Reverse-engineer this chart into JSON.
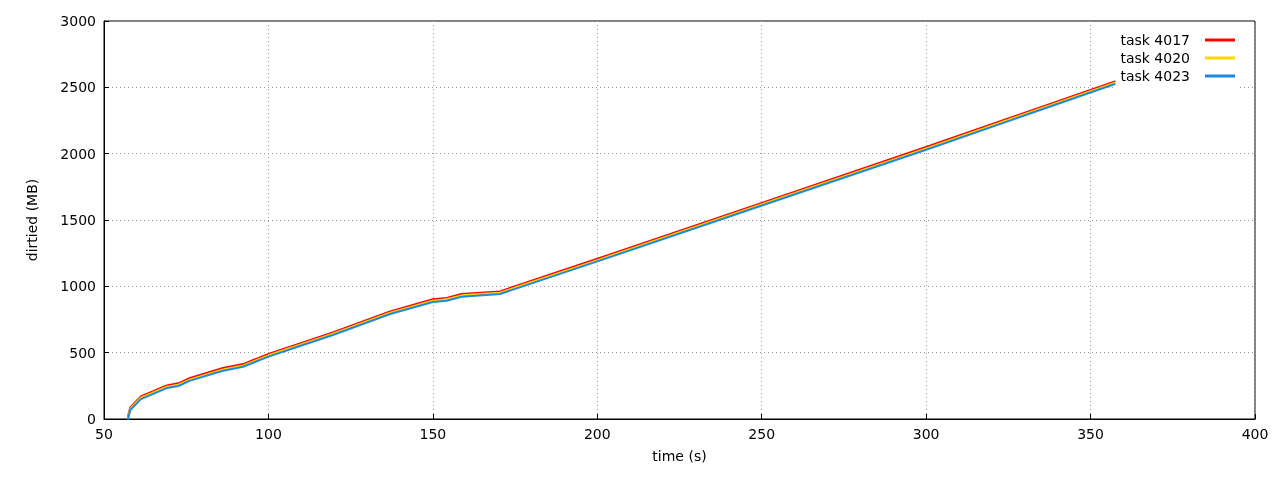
{
  "chart_data": {
    "type": "line",
    "xlabel": "time (s)",
    "ylabel": "dirtied (MB)",
    "xlim": [
      50,
      400
    ],
    "xticks": [
      50,
      100,
      150,
      200,
      250,
      300,
      350,
      400
    ],
    "ylim": [
      0,
      3000
    ],
    "yticks": [
      0,
      500,
      1000,
      1500,
      2000,
      2500,
      3000
    ],
    "grid": true,
    "legend": "top right",
    "marker": "none",
    "line_style": "solid",
    "x": [
      57.3,
      58,
      61.2,
      69.1,
      72.6,
      76.2,
      86.2,
      92.3,
      100,
      109.6,
      119.6,
      137,
      150,
      154.2,
      158.7,
      170.4,
      175.5,
      199.8,
      250.5,
      300,
      357.4
    ],
    "series": [
      {
        "name": "task 4017",
        "color": "#ff0000",
        "values": [
          20,
          88,
          170,
          253,
          269,
          309,
          384,
          414,
          490,
          570,
          653,
          811,
          902,
          912,
          942,
          962,
          1005,
          1206,
          1633,
          2050,
          2545
        ]
      },
      {
        "name": "task 4020",
        "color": "#ffd700",
        "values": [
          10,
          78,
          160,
          243,
          259,
          299,
          374,
          404,
          480,
          560,
          643,
          801,
          892,
          902,
          932,
          952,
          995,
          1196,
          1623,
          2040,
          2535
        ]
      },
      {
        "name": "task 4023",
        "color": "#1e88e5",
        "values": [
          0,
          68,
          150,
          233,
          249,
          289,
          364,
          394,
          470,
          550,
          633,
          791,
          882,
          892,
          922,
          942,
          985,
          1186,
          1613,
          2030,
          2525
        ]
      }
    ]
  }
}
